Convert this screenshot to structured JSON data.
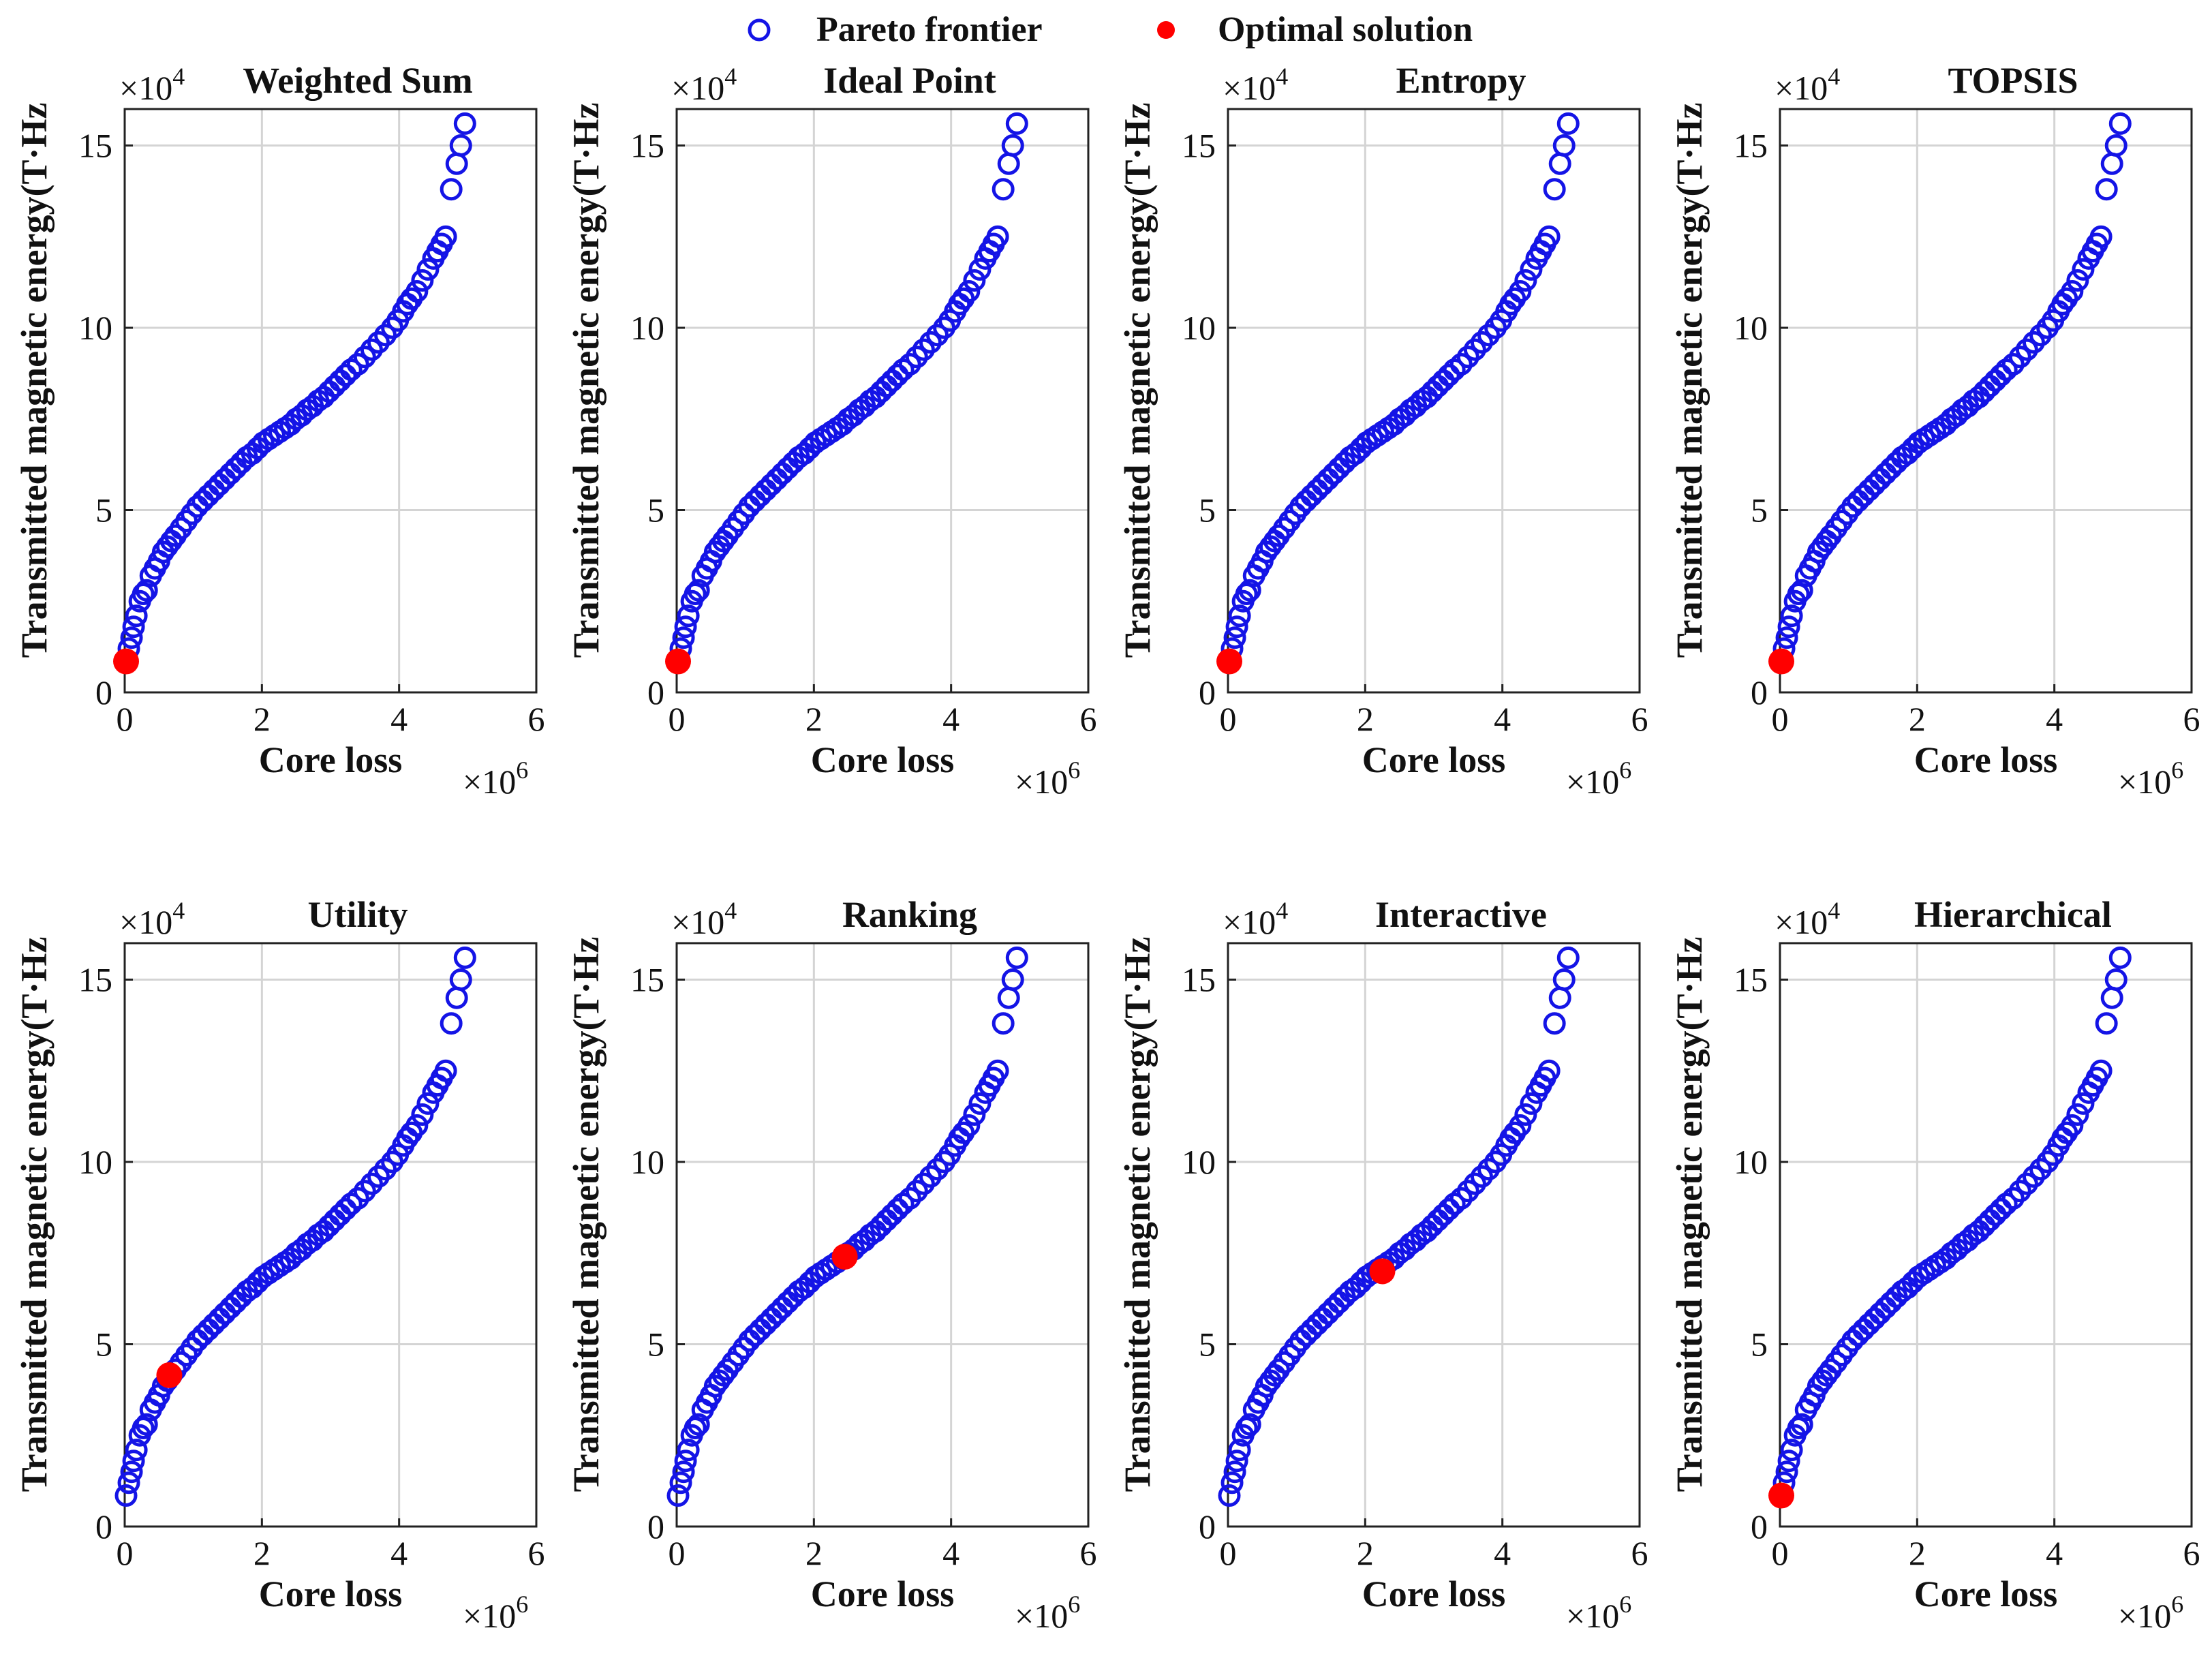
{
  "legend": {
    "pareto_label": "Pareto frontier",
    "optimal_label": "Optimal solution",
    "pareto_color": "#1414e6",
    "optimal_color": "#ff0000"
  },
  "shared": {
    "xlabel": "Core loss",
    "ylabel": "Transmitted magnetic energy(T·Hz",
    "x_multiplier_base": "×10",
    "x_multiplier_exp": "6",
    "y_multiplier_base": "×10",
    "y_multiplier_exp": "4",
    "xlim": [
      0,
      6
    ],
    "ylim": [
      0,
      16
    ],
    "xticks": [
      0,
      2,
      4,
      6
    ],
    "yticks": [
      0,
      5,
      10,
      15
    ],
    "grid": true
  },
  "chart_data": [
    {
      "type": "scatter",
      "title": "Weighted Sum",
      "optimal": {
        "x": 0.02,
        "y": 0.85
      }
    },
    {
      "type": "scatter",
      "title": "Ideal Point",
      "optimal": {
        "x": 0.02,
        "y": 0.85
      }
    },
    {
      "type": "scatter",
      "title": "Entropy",
      "optimal": {
        "x": 0.02,
        "y": 0.85
      }
    },
    {
      "type": "scatter",
      "title": "TOPSIS",
      "optimal": {
        "x": 0.02,
        "y": 0.85
      }
    },
    {
      "type": "scatter",
      "title": "Utility",
      "optimal": {
        "x": 0.65,
        "y": 4.15
      }
    },
    {
      "type": "scatter",
      "title": "Ranking",
      "optimal": {
        "x": 2.45,
        "y": 7.4
      }
    },
    {
      "type": "scatter",
      "title": "Interactive",
      "optimal": {
        "x": 2.25,
        "y": 7.0
      }
    },
    {
      "type": "scatter",
      "title": "Hierarchical",
      "optimal": {
        "x": 0.02,
        "y": 0.85
      }
    }
  ],
  "pareto_points": [
    [
      0.02,
      0.85
    ],
    [
      0.06,
      1.2
    ],
    [
      0.1,
      1.5
    ],
    [
      0.13,
      1.8
    ],
    [
      0.17,
      2.1
    ],
    [
      0.22,
      2.5
    ],
    [
      0.27,
      2.7
    ],
    [
      0.32,
      2.8
    ],
    [
      0.38,
      3.2
    ],
    [
      0.44,
      3.4
    ],
    [
      0.5,
      3.6
    ],
    [
      0.56,
      3.85
    ],
    [
      0.62,
      4.0
    ],
    [
      0.68,
      4.15
    ],
    [
      0.74,
      4.3
    ],
    [
      0.82,
      4.5
    ],
    [
      0.9,
      4.7
    ],
    [
      0.98,
      4.9
    ],
    [
      1.06,
      5.1
    ],
    [
      1.14,
      5.25
    ],
    [
      1.22,
      5.4
    ],
    [
      1.3,
      5.55
    ],
    [
      1.38,
      5.7
    ],
    [
      1.46,
      5.85
    ],
    [
      1.54,
      6.0
    ],
    [
      1.62,
      6.15
    ],
    [
      1.7,
      6.3
    ],
    [
      1.78,
      6.45
    ],
    [
      1.86,
      6.55
    ],
    [
      1.94,
      6.7
    ],
    [
      2.02,
      6.85
    ],
    [
      2.1,
      6.95
    ],
    [
      2.18,
      7.05
    ],
    [
      2.26,
      7.15
    ],
    [
      2.34,
      7.25
    ],
    [
      2.42,
      7.35
    ],
    [
      2.5,
      7.5
    ],
    [
      2.58,
      7.6
    ],
    [
      2.66,
      7.75
    ],
    [
      2.74,
      7.85
    ],
    [
      2.82,
      8.0
    ],
    [
      2.9,
      8.1
    ],
    [
      2.98,
      8.25
    ],
    [
      3.06,
      8.4
    ],
    [
      3.14,
      8.55
    ],
    [
      3.22,
      8.7
    ],
    [
      3.3,
      8.85
    ],
    [
      3.4,
      9.0
    ],
    [
      3.5,
      9.2
    ],
    [
      3.6,
      9.4
    ],
    [
      3.7,
      9.6
    ],
    [
      3.8,
      9.8
    ],
    [
      3.9,
      10.0
    ],
    [
      3.98,
      10.2
    ],
    [
      4.06,
      10.45
    ],
    [
      4.12,
      10.65
    ],
    [
      4.18,
      10.8
    ],
    [
      4.26,
      11.0
    ],
    [
      4.34,
      11.3
    ],
    [
      4.42,
      11.6
    ],
    [
      4.5,
      11.9
    ],
    [
      4.56,
      12.1
    ],
    [
      4.62,
      12.3
    ],
    [
      4.68,
      12.5
    ],
    [
      4.76,
      13.8
    ],
    [
      4.84,
      14.5
    ],
    [
      4.9,
      15.0
    ],
    [
      4.96,
      15.6
    ]
  ]
}
